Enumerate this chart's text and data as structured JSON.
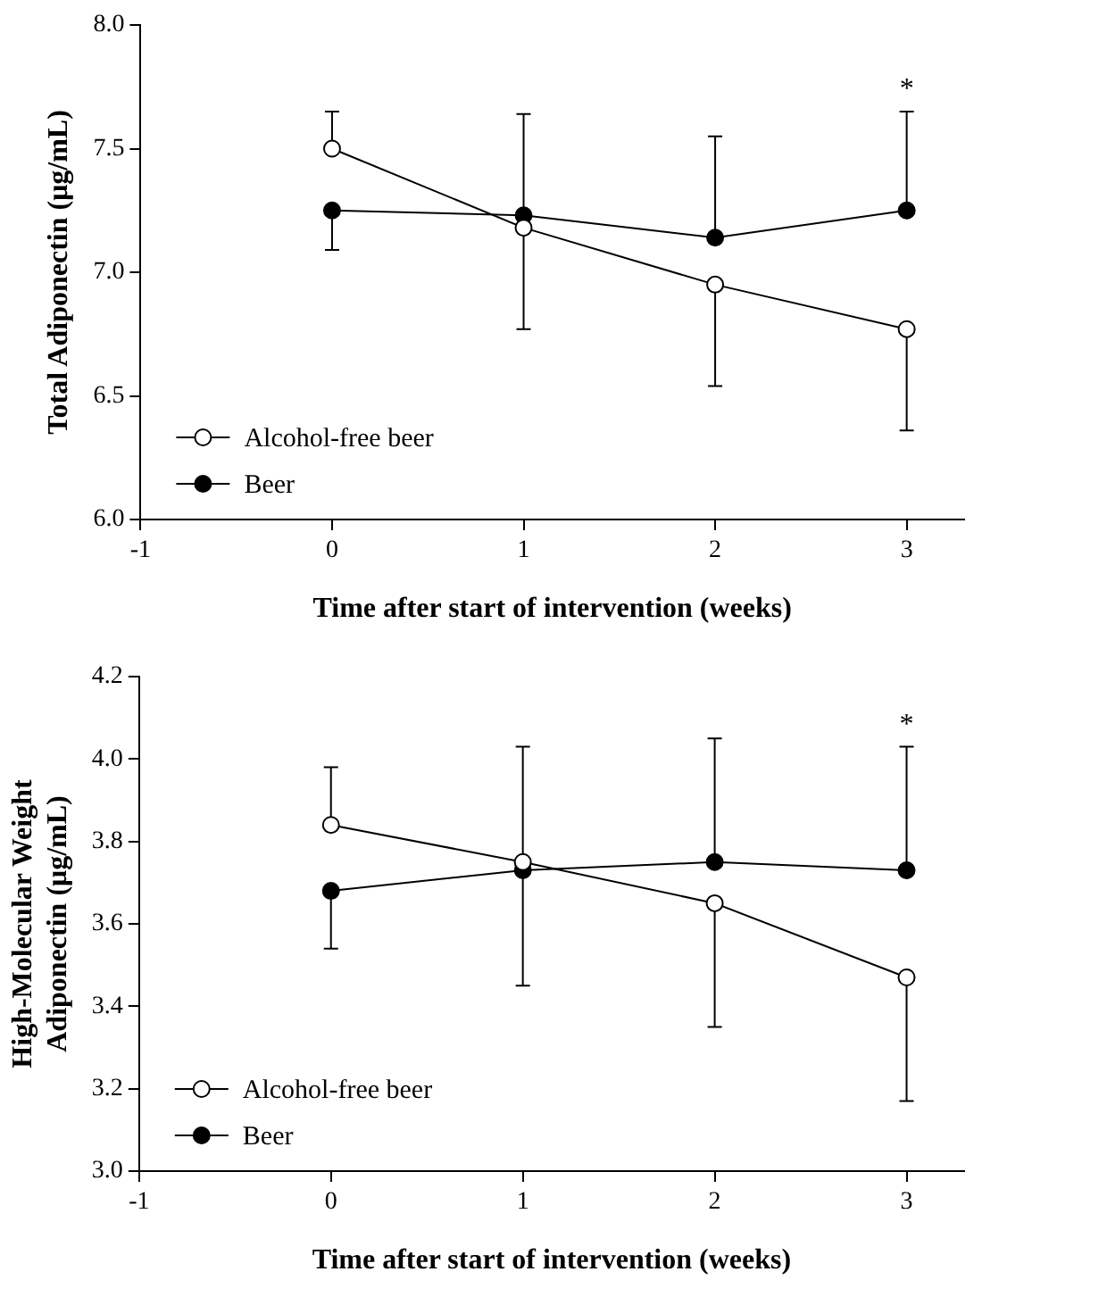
{
  "chart_data": [
    {
      "type": "line",
      "xlabel": "Time after start of intervention (weeks)",
      "ylabel": "Total Adiponectin (μg/mL)",
      "xlim": [
        -1,
        3.3
      ],
      "xticks": [
        -1,
        0,
        1,
        2,
        3
      ],
      "ylim": [
        6.0,
        8.0
      ],
      "yticks": [
        {
          "value": 6,
          "label": "6.0"
        },
        {
          "value": 6.5,
          "label": "6.5"
        },
        {
          "value": 7,
          "label": "7.0"
        },
        {
          "value": 7.5,
          "label": "7.5"
        },
        {
          "value": 8,
          "label": "8.0"
        }
      ],
      "x": [
        0,
        1,
        2,
        3
      ],
      "grid": false,
      "legend": "bottom left",
      "marker": "circle",
      "line_style": "solid",
      "series": [
        {
          "name": "Alcohol-free beer",
          "color": "#ffffff",
          "values": [
            7.5,
            7.18,
            6.95,
            6.77
          ],
          "errors": [
            [
              7.5,
              7.65
            ],
            [
              6.77,
              7.18
            ],
            [
              6.54,
              6.95
            ],
            [
              6.36,
              6.77
            ]
          ]
        },
        {
          "name": "Beer",
          "color": "#000000",
          "values": [
            7.25,
            7.23,
            7.14,
            7.25
          ],
          "errors": [
            [
              7.09,
              7.25
            ],
            [
              7.23,
              7.64
            ],
            [
              7.14,
              7.55
            ],
            [
              7.25,
              7.65
            ]
          ]
        }
      ],
      "annotations": [
        "*"
      ]
    },
    {
      "type": "line",
      "xlabel": "Time after start of intervention (weeks)",
      "ylabel": "High-Molecular Weight Adiponectin (μg/mL)",
      "xlim": [
        -1,
        3.3
      ],
      "xticks": [
        -1,
        0,
        1,
        2,
        3
      ],
      "ylim": [
        3.0,
        4.2
      ],
      "yticks": [
        {
          "value": 3,
          "label": "3.0"
        },
        {
          "value": 3.2,
          "label": "3.2"
        },
        {
          "value": 3.4,
          "label": "3.4"
        },
        {
          "value": 3.6,
          "label": "3.6"
        },
        {
          "value": 3.8,
          "label": "3.8"
        },
        {
          "value": 4,
          "label": "4.0"
        },
        {
          "value": 4.2,
          "label": "4.2"
        }
      ],
      "x": [
        0,
        1,
        2,
        3
      ],
      "grid": false,
      "legend": "bottom left",
      "marker": "circle",
      "line_style": "solid",
      "series": [
        {
          "name": "Alcohol-free beer",
          "color": "#ffffff",
          "values": [
            3.84,
            3.75,
            3.65,
            3.47
          ],
          "errors": [
            [
              3.84,
              3.98
            ],
            [
              3.45,
              3.75
            ],
            [
              3.35,
              3.65
            ],
            [
              3.17,
              3.47
            ]
          ]
        },
        {
          "name": "Beer",
          "color": "#000000",
          "values": [
            3.68,
            3.73,
            3.75,
            3.73
          ],
          "errors": [
            [
              3.54,
              3.68
            ],
            [
              3.73,
              4.03
            ],
            [
              3.75,
              4.05
            ],
            [
              3.73,
              4.03
            ]
          ]
        }
      ],
      "annotations": [
        "*"
      ]
    }
  ]
}
